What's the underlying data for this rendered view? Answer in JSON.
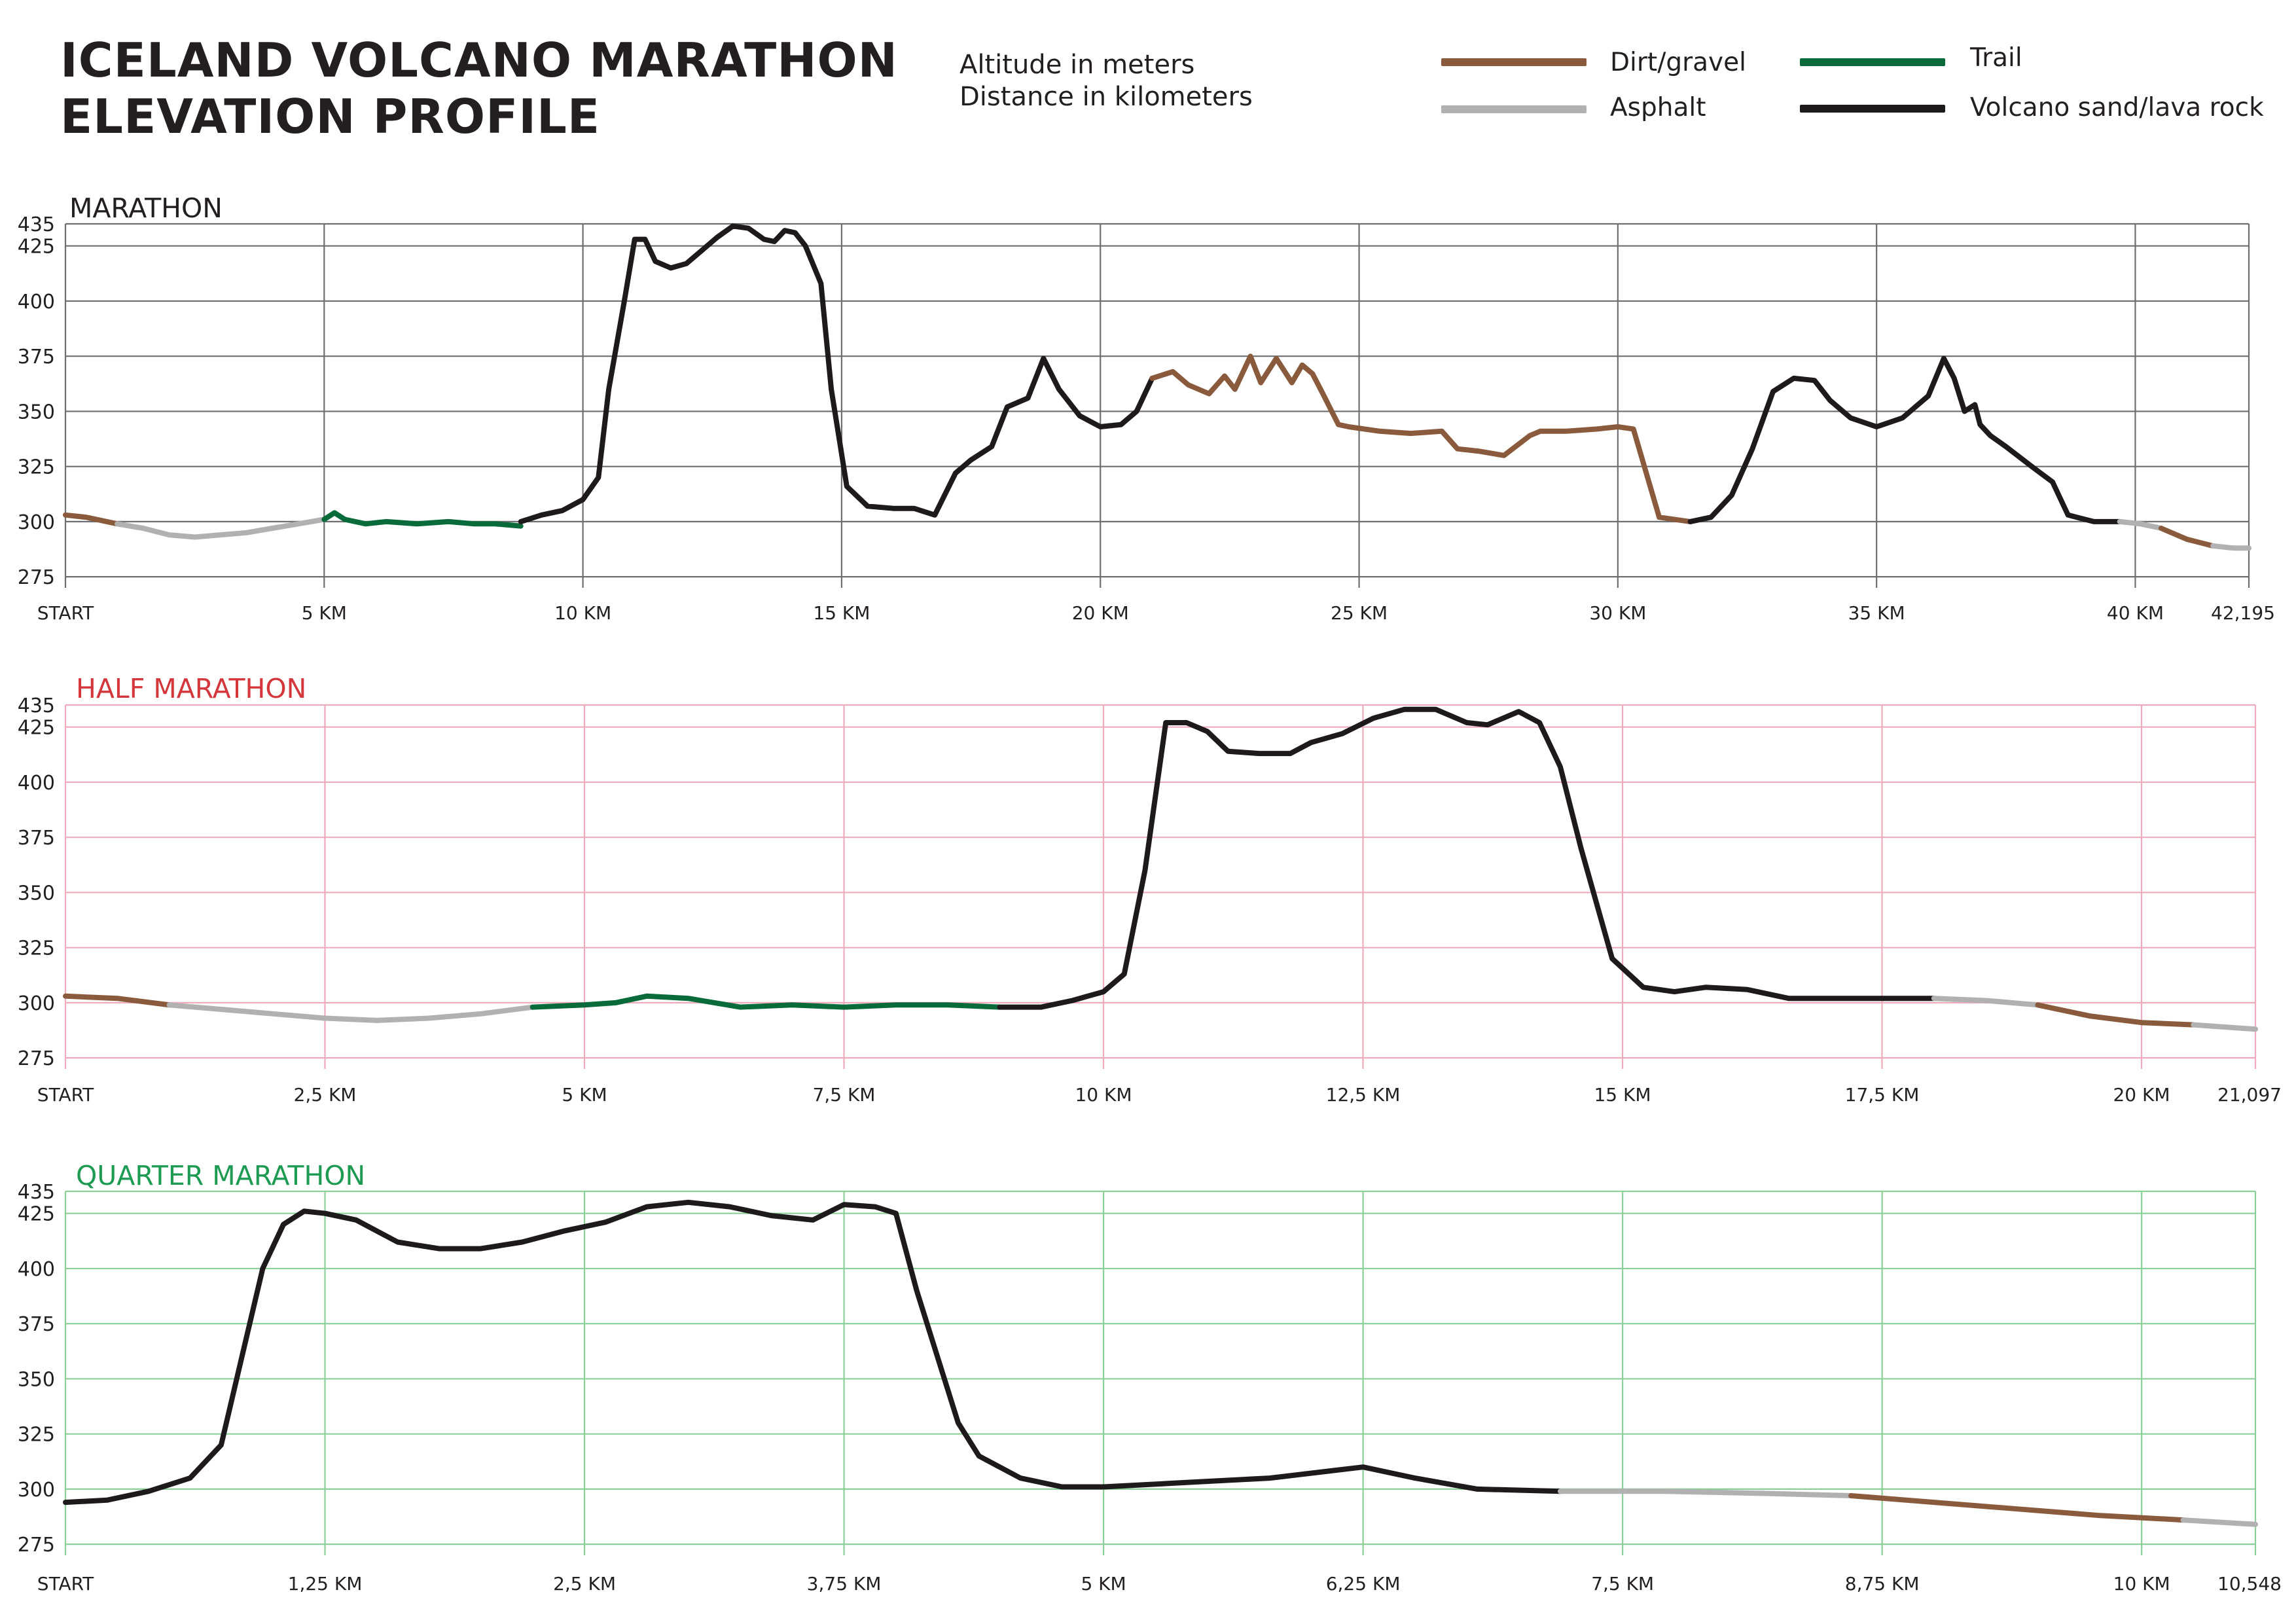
{
  "title": {
    "line1": "ICELAND VOLCANO MARATHON",
    "line2": "ELEVATION PROFILE"
  },
  "units": {
    "altitude": "Altitude in meters",
    "distance": "Distance in kilometers"
  },
  "legend": [
    {
      "label": "Dirt/gravel",
      "color": "#8a5a3c"
    },
    {
      "label": "Asphalt",
      "color": "#b1b1b1"
    },
    {
      "label": "Trail",
      "color": "#0a6b3a"
    },
    {
      "label": "Volcano sand/lava rock",
      "color": "#1e1a1b"
    }
  ],
  "surface_colors": {
    "dirt": "#8a5a3c",
    "asphalt": "#b1b1b1",
    "trail": "#0a6b3a",
    "sand": "#1e1a1b"
  },
  "chart_data": [
    {
      "type": "line",
      "title": "MARATHON",
      "title_color": "#231f20",
      "grid_color": "#6d6e71",
      "xlabel": "Distance in kilometers",
      "ylabel": "Altitude in meters",
      "xlim": [
        0,
        42.195
      ],
      "ylim": [
        270,
        435
      ],
      "yticks": [
        275,
        300,
        325,
        350,
        375,
        400,
        425,
        435
      ],
      "xticks": [
        {
          "value": 0,
          "label": "START"
        },
        {
          "value": 5,
          "label": "5 KM"
        },
        {
          "value": 10,
          "label": "10 KM"
        },
        {
          "value": 15,
          "label": "15 KM"
        },
        {
          "value": 20,
          "label": "20 KM"
        },
        {
          "value": 25,
          "label": "25 KM"
        },
        {
          "value": 30,
          "label": "30 KM"
        },
        {
          "value": 35,
          "label": "35 KM"
        },
        {
          "value": 40,
          "label": "40 KM"
        },
        {
          "value": 42.195,
          "label": "42,195"
        }
      ],
      "series": [
        {
          "surface": "dirt",
          "x": [
            0,
            0.4,
            1.0
          ],
          "y": [
            303,
            302,
            299
          ]
        },
        {
          "surface": "asphalt",
          "x": [
            1.0,
            1.5,
            2.0,
            2.5,
            3.0,
            3.5,
            4.0,
            4.5,
            5.0
          ],
          "y": [
            299,
            297,
            294,
            293,
            294,
            295,
            297,
            299,
            301
          ]
        },
        {
          "surface": "trail",
          "x": [
            5.0,
            5.2,
            5.4,
            5.8,
            6.2,
            6.8,
            7.4,
            7.9,
            8.3,
            8.8
          ],
          "y": [
            301,
            304,
            301,
            299,
            300,
            299,
            300,
            299,
            299,
            298
          ]
        },
        {
          "surface": "sand",
          "x": [
            8.8,
            9.2,
            9.6,
            10.0,
            10.3,
            10.5,
            10.8,
            11.0,
            11.2,
            11.4,
            11.7,
            12.0,
            12.3,
            12.6,
            12.9,
            13.2,
            13.5,
            13.7,
            13.9,
            14.1,
            14.3,
            14.6,
            14.8,
            15.1,
            15.5,
            16.0,
            16.4,
            16.8,
            17.2,
            17.5,
            17.9,
            18.2,
            18.6,
            18.9,
            19.2,
            19.6,
            20.0,
            20.4,
            20.7,
            21.0
          ],
          "y": [
            300,
            303,
            305,
            310,
            320,
            360,
            400,
            428,
            428,
            418,
            415,
            417,
            423,
            429,
            434,
            433,
            428,
            427,
            432,
            431,
            425,
            408,
            360,
            316,
            307,
            306,
            306,
            303,
            322,
            328,
            334,
            352,
            356,
            374,
            360,
            348,
            343,
            344,
            350,
            365
          ]
        },
        {
          "surface": "dirt",
          "x": [
            21.0,
            21.4,
            21.7,
            22.1,
            22.4,
            22.6,
            22.9,
            23.1,
            23.4,
            23.7,
            23.9,
            24.1,
            24.3,
            24.6,
            24.8,
            25.4,
            26.0,
            26.6,
            26.9,
            27.3,
            27.8,
            28.3,
            28.5,
            29.0,
            29.6,
            30.0,
            30.3,
            30.8,
            31.4
          ],
          "y": [
            365,
            368,
            362,
            358,
            366,
            360,
            375,
            363,
            374,
            363,
            371,
            367,
            358,
            344,
            343,
            341,
            340,
            341,
            333,
            332,
            330,
            339,
            341,
            341,
            342,
            343,
            342,
            302,
            300
          ]
        },
        {
          "surface": "sand",
          "x": [
            31.4,
            31.8,
            32.2,
            32.6,
            33.0,
            33.4,
            33.8,
            34.1,
            34.5,
            35.0,
            35.5,
            36.0,
            36.3,
            36.5,
            36.7,
            36.9,
            37.0,
            37.2,
            37.5,
            38.0,
            38.4,
            38.7,
            39.2,
            39.7
          ],
          "y": [
            300,
            302,
            312,
            333,
            359,
            365,
            364,
            355,
            347,
            343,
            347,
            357,
            374,
            365,
            350,
            353,
            344,
            339,
            334,
            325,
            318,
            303,
            300,
            300
          ]
        },
        {
          "surface": "asphalt",
          "x": [
            39.7,
            40.1,
            40.5
          ],
          "y": [
            300,
            299,
            297
          ]
        },
        {
          "surface": "dirt",
          "x": [
            40.5,
            41.0,
            41.5
          ],
          "y": [
            297,
            292,
            289
          ]
        },
        {
          "surface": "asphalt",
          "x": [
            41.5,
            41.9,
            42.195
          ],
          "y": [
            289,
            288,
            288
          ]
        }
      ]
    },
    {
      "type": "line",
      "title": "HALF MARATHON",
      "title_color": "#d3363b",
      "grid_color": "#eeabbb",
      "xlabel": "Distance in kilometers",
      "ylabel": "Altitude in meters",
      "xlim": [
        0,
        21.097
      ],
      "ylim": [
        270,
        435
      ],
      "yticks": [
        275,
        300,
        325,
        350,
        375,
        400,
        425,
        435
      ],
      "xticks": [
        {
          "value": 0,
          "label": "START"
        },
        {
          "value": 2.5,
          "label": "2,5 KM"
        },
        {
          "value": 5,
          "label": "5 KM"
        },
        {
          "value": 7.5,
          "label": "7,5 KM"
        },
        {
          "value": 10,
          "label": "10 KM"
        },
        {
          "value": 12.5,
          "label": "12,5 KM"
        },
        {
          "value": 15,
          "label": "15 KM"
        },
        {
          "value": 17.5,
          "label": "17,5 KM"
        },
        {
          "value": 20,
          "label": "20 KM"
        },
        {
          "value": 21.097,
          "label": "21,097"
        }
      ],
      "series": [
        {
          "surface": "dirt",
          "x": [
            0,
            0.5,
            1.0
          ],
          "y": [
            303,
            302,
            299
          ]
        },
        {
          "surface": "asphalt",
          "x": [
            1.0,
            1.5,
            2.0,
            2.5,
            3.0,
            3.5,
            4.0,
            4.5
          ],
          "y": [
            299,
            297,
            295,
            293,
            292,
            293,
            295,
            298
          ]
        },
        {
          "surface": "trail",
          "x": [
            4.5,
            5.0,
            5.3,
            5.6,
            6.0,
            6.5,
            7.0,
            7.5,
            8.0,
            8.5,
            9.0
          ],
          "y": [
            298,
            299,
            300,
            303,
            302,
            298,
            299,
            298,
            299,
            299,
            298
          ]
        },
        {
          "surface": "sand",
          "x": [
            9.0,
            9.4,
            9.7,
            10.0,
            10.2,
            10.4,
            10.6,
            10.8,
            11.0,
            11.2,
            11.5,
            11.8,
            12.0,
            12.3,
            12.6,
            12.9,
            13.2,
            13.5,
            13.7,
            14.0,
            14.2,
            14.4,
            14.6,
            14.9,
            15.2,
            15.5,
            15.8,
            16.2,
            16.6,
            17.0,
            17.5,
            18.0
          ],
          "y": [
            298,
            298,
            301,
            305,
            313,
            360,
            427,
            427,
            423,
            414,
            413,
            413,
            418,
            422,
            429,
            433,
            433,
            427,
            426,
            432,
            427,
            407,
            370,
            320,
            307,
            305,
            307,
            306,
            302,
            302,
            302,
            302
          ]
        },
        {
          "surface": "asphalt",
          "x": [
            18.0,
            18.5,
            19.0
          ],
          "y": [
            302,
            301,
            299
          ]
        },
        {
          "surface": "dirt",
          "x": [
            19.0,
            19.5,
            20.0,
            20.5
          ],
          "y": [
            299,
            294,
            291,
            290
          ]
        },
        {
          "surface": "asphalt",
          "x": [
            20.5,
            20.8,
            21.097
          ],
          "y": [
            290,
            289,
            288
          ]
        }
      ]
    },
    {
      "type": "line",
      "title": "QUARTER MARATHON",
      "title_color": "#1e9b53",
      "grid_color": "#8bd098",
      "xlabel": "Distance in kilometers",
      "ylabel": "Altitude in meters",
      "xlim": [
        0,
        10.548
      ],
      "ylim": [
        270,
        435
      ],
      "yticks": [
        275,
        300,
        325,
        350,
        375,
        400,
        425,
        435
      ],
      "xticks": [
        {
          "value": 0,
          "label": "START"
        },
        {
          "value": 1.25,
          "label": "1,25 KM"
        },
        {
          "value": 2.5,
          "label": "2,5 KM"
        },
        {
          "value": 3.75,
          "label": "3,75 KM"
        },
        {
          "value": 5,
          "label": "5 KM"
        },
        {
          "value": 6.25,
          "label": "6,25 KM"
        },
        {
          "value": 7.5,
          "label": "7,5 KM"
        },
        {
          "value": 8.75,
          "label": "8,75 KM"
        },
        {
          "value": 10,
          "label": "10 KM"
        },
        {
          "value": 10.548,
          "label": "10,548"
        }
      ],
      "series": [
        {
          "surface": "sand",
          "x": [
            0,
            0.2,
            0.4,
            0.6,
            0.75,
            0.85,
            0.95,
            1.05,
            1.15,
            1.25,
            1.4,
            1.6,
            1.8,
            2.0,
            2.2,
            2.4,
            2.6,
            2.8,
            3.0,
            3.2,
            3.4,
            3.6,
            3.75,
            3.9,
            4.0,
            4.1,
            4.2,
            4.3,
            4.4,
            4.6,
            4.8,
            5.0,
            5.4,
            5.8,
            6.25,
            6.5,
            6.8,
            7.2
          ],
          "y": [
            294,
            295,
            299,
            305,
            320,
            360,
            400,
            420,
            426,
            425,
            422,
            412,
            409,
            409,
            412,
            417,
            421,
            428,
            430,
            428,
            424,
            422,
            429,
            428,
            425,
            390,
            360,
            330,
            315,
            305,
            301,
            301,
            303,
            305,
            310,
            305,
            300,
            299
          ]
        },
        {
          "surface": "asphalt",
          "x": [
            7.2,
            7.7,
            8.2,
            8.6
          ],
          "y": [
            299,
            299,
            298,
            297
          ]
        },
        {
          "surface": "dirt",
          "x": [
            8.6,
            9.0,
            9.4,
            9.8,
            10.2
          ],
          "y": [
            297,
            294,
            291,
            288,
            286
          ]
        },
        {
          "surface": "asphalt",
          "x": [
            10.2,
            10.548
          ],
          "y": [
            286,
            284
          ]
        }
      ]
    }
  ]
}
